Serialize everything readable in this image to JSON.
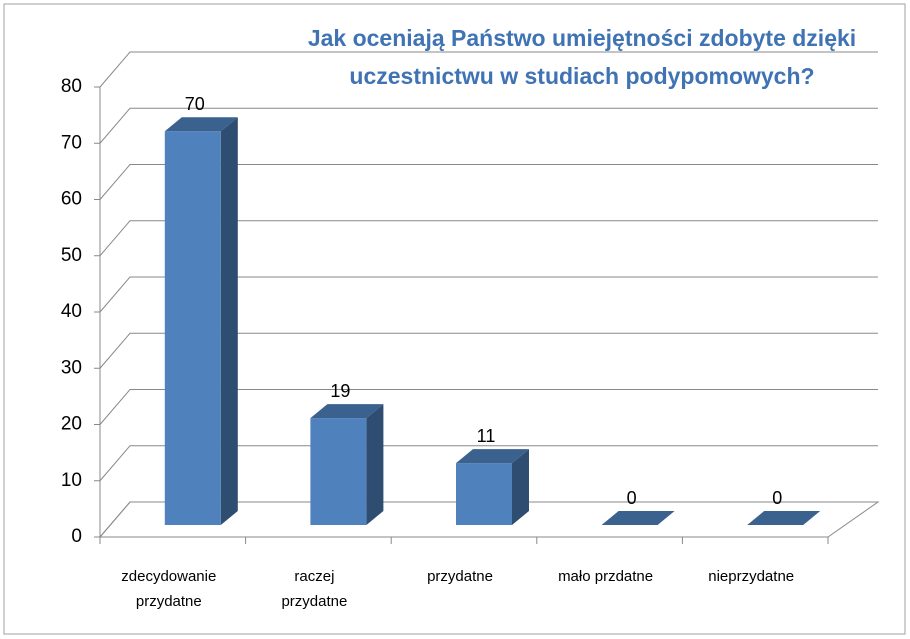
{
  "chart_data": {
    "type": "bar3d",
    "title": [
      "Jak oceniają Państwo umiejętności zdobyte dzięki",
      "uczestnictwu w studiach podypomowych?"
    ],
    "categories": [
      [
        "zdecydowanie",
        "przydatne"
      ],
      [
        "raczej",
        "przydatne"
      ],
      [
        "przydatne"
      ],
      [
        "mało przdatne"
      ],
      [
        "nieprzydatne"
      ]
    ],
    "values": [
      70,
      19,
      11,
      0,
      0
    ],
    "color": "#4f81bd",
    "ylim": [
      0,
      80
    ],
    "yticks": [
      0,
      10,
      20,
      30,
      40,
      50,
      60,
      70,
      80
    ],
    "grid": true
  }
}
